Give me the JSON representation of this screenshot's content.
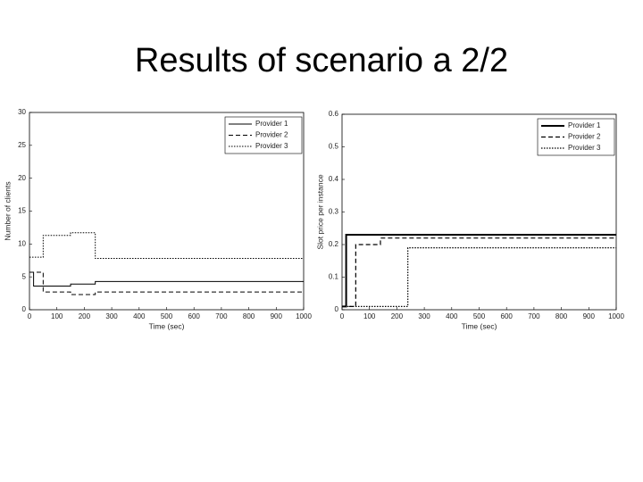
{
  "title": "Results of scenario a 2/2",
  "chart_data": [
    {
      "type": "line",
      "drawstyle": "steps-post",
      "xlabel": "Time (sec)",
      "ylabel": "Number of clients",
      "x": [
        0,
        15,
        50,
        150,
        240,
        1000
      ],
      "xlim": [
        0,
        1000
      ],
      "xticks": [
        0,
        100,
        200,
        300,
        400,
        500,
        600,
        700,
        800,
        900,
        1000
      ],
      "ylim": [
        0,
        30
      ],
      "yticks": [
        0,
        5,
        10,
        15,
        20,
        25,
        30
      ],
      "legend": "upper right",
      "series": [
        {
          "name": "Provider 1",
          "color": "#000000",
          "linestyle": "solid",
          "linewidth": 1,
          "values": [
            5.7,
            3.6,
            3.6,
            3.9,
            4.3,
            4.3
          ]
        },
        {
          "name": "Provider 2",
          "color": "#000000",
          "linestyle": "dashed",
          "linewidth": 1,
          "values": [
            5.7,
            5.7,
            2.7,
            2.3,
            2.7,
            2.7
          ]
        },
        {
          "name": "Provider 3",
          "color": "#000000",
          "linestyle": "dotted",
          "linewidth": 1,
          "values": [
            8,
            8,
            11.3,
            11.7,
            7.8,
            7.8
          ]
        }
      ]
    },
    {
      "type": "line",
      "drawstyle": "steps-post",
      "xlabel": "Time (sec)",
      "ylabel": "Slot price per instance",
      "x": [
        0,
        15,
        50,
        140,
        240,
        1000
      ],
      "xlim": [
        0,
        1000
      ],
      "xticks": [
        0,
        100,
        200,
        300,
        400,
        500,
        600,
        700,
        800,
        900,
        1000
      ],
      "ylim": [
        0,
        0.6
      ],
      "yticks": [
        0,
        0.1,
        0.2,
        0.3,
        0.4,
        0.5,
        0.6
      ],
      "legend": "upper right",
      "series": [
        {
          "name": "Provider 1",
          "color": "#000000",
          "linestyle": "solid",
          "linewidth": 2,
          "values": [
            0.01,
            0.23,
            0.23,
            0.23,
            0.23,
            0.23
          ]
        },
        {
          "name": "Provider 2",
          "color": "#000000",
          "linestyle": "dashed",
          "linewidth": 1.2,
          "values": [
            0.01,
            0.01,
            0.2,
            0.22,
            0.22,
            0.22
          ]
        },
        {
          "name": "Provider 3",
          "color": "#000000",
          "linestyle": "dotted",
          "linewidth": 1.2,
          "values": [
            0.01,
            0.01,
            0.01,
            0.01,
            0.19,
            0.19
          ]
        }
      ]
    }
  ]
}
